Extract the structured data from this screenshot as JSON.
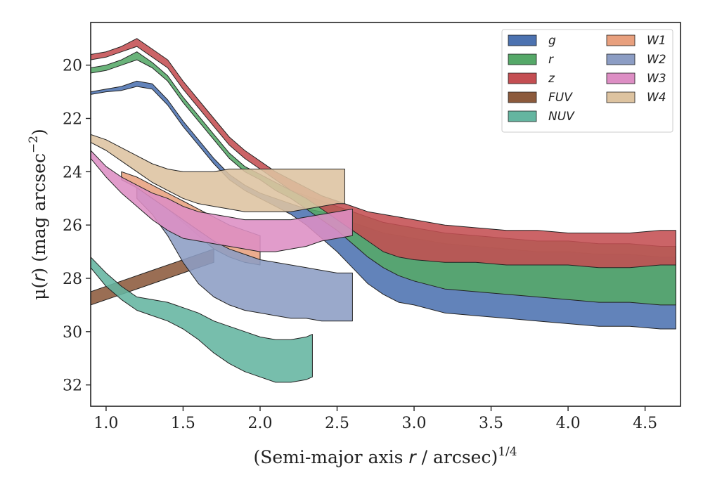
{
  "chart_data": {
    "type": "area",
    "xlabel": "(Semi-major axis r / arcsec)^{1/4}",
    "xlabel_parts": {
      "pre": "(Semi-major axis ",
      "var": "r",
      "post": " / arcsec)",
      "sup": "1/4"
    },
    "ylabel": "μ(r) (mag arcsec^{-2})",
    "ylabel_parts": {
      "mu": "μ(",
      "var": "r",
      "post": ") (mag arcsec",
      "sup": "−2",
      "close": ")"
    },
    "xlim": [
      0.9,
      4.73
    ],
    "ylim": [
      32.8,
      18.4
    ],
    "y_inverted": true,
    "xticks": [
      1.0,
      1.5,
      2.0,
      2.5,
      3.0,
      3.5,
      4.0,
      4.5
    ],
    "xtick_labels": [
      "1.0",
      "1.5",
      "2.0",
      "2.5",
      "3.0",
      "3.5",
      "4.0",
      "4.5"
    ],
    "yticks": [
      20,
      22,
      24,
      26,
      28,
      30,
      32
    ],
    "ytick_labels": [
      "20",
      "22",
      "24",
      "26",
      "28",
      "30",
      "32"
    ],
    "legend_position": "top-right",
    "legend_columns": 2,
    "series": [
      {
        "name": "g",
        "color": "#4c72b0",
        "x": [
          0.9,
          1.0,
          1.1,
          1.2,
          1.3,
          1.4,
          1.5,
          1.6,
          1.7,
          1.8,
          1.9,
          2.0,
          2.1,
          2.2,
          2.3,
          2.4,
          2.5,
          2.6,
          2.7,
          2.8,
          2.9,
          3.0,
          3.2,
          3.4,
          3.6,
          3.8,
          4.0,
          4.2,
          4.4,
          4.6,
          4.7
        ],
        "lo": [
          21.0,
          20.9,
          20.8,
          20.6,
          20.7,
          21.3,
          22.1,
          22.8,
          23.5,
          24.1,
          24.5,
          24.8,
          25.0,
          25.2,
          25.4,
          25.5,
          25.7,
          25.9,
          26.1,
          26.3,
          26.4,
          26.5,
          26.7,
          26.8,
          26.9,
          27.0,
          27.0,
          27.1,
          27.1,
          27.2,
          27.2
        ],
        "hi": [
          21.1,
          21.0,
          20.95,
          20.8,
          20.9,
          21.5,
          22.3,
          23.0,
          23.7,
          24.3,
          24.7,
          25.0,
          25.3,
          25.6,
          26.0,
          26.5,
          27.0,
          27.6,
          28.2,
          28.6,
          28.9,
          29.0,
          29.3,
          29.4,
          29.5,
          29.6,
          29.7,
          29.8,
          29.8,
          29.9,
          29.9
        ]
      },
      {
        "name": "r",
        "color": "#55a868",
        "x": [
          0.9,
          1.0,
          1.1,
          1.2,
          1.3,
          1.4,
          1.5,
          1.6,
          1.7,
          1.8,
          1.9,
          2.0,
          2.1,
          2.2,
          2.3,
          2.4,
          2.5,
          2.6,
          2.7,
          2.8,
          2.9,
          3.0,
          3.2,
          3.4,
          3.6,
          3.8,
          4.0,
          4.2,
          4.4,
          4.6,
          4.7
        ],
        "lo": [
          20.1,
          20.0,
          19.8,
          19.5,
          19.9,
          20.4,
          21.2,
          21.9,
          22.6,
          23.3,
          23.8,
          24.1,
          24.4,
          24.7,
          24.9,
          25.1,
          25.3,
          25.5,
          25.7,
          25.9,
          26.0,
          26.1,
          26.3,
          26.4,
          26.5,
          26.6,
          26.6,
          26.7,
          26.7,
          26.8,
          26.8
        ],
        "hi": [
          20.3,
          20.2,
          20.0,
          19.8,
          20.1,
          20.6,
          21.4,
          22.1,
          22.8,
          23.5,
          24.0,
          24.3,
          24.7,
          25.0,
          25.4,
          25.8,
          26.2,
          26.7,
          27.2,
          27.6,
          27.9,
          28.1,
          28.4,
          28.5,
          28.6,
          28.7,
          28.8,
          28.9,
          28.9,
          29.0,
          29.0
        ]
      },
      {
        "name": "z",
        "color": "#c44e52",
        "x": [
          0.9,
          1.0,
          1.1,
          1.2,
          1.3,
          1.4,
          1.5,
          1.6,
          1.7,
          1.8,
          1.9,
          2.0,
          2.1,
          2.2,
          2.3,
          2.4,
          2.5,
          2.6,
          2.7,
          2.8,
          2.9,
          3.0,
          3.2,
          3.4,
          3.6,
          3.8,
          4.0,
          4.2,
          4.4,
          4.6,
          4.7
        ],
        "lo": [
          19.6,
          19.5,
          19.3,
          19.0,
          19.4,
          19.8,
          20.6,
          21.3,
          22.0,
          22.7,
          23.2,
          23.6,
          24.0,
          24.3,
          24.6,
          24.9,
          25.1,
          25.3,
          25.5,
          25.6,
          25.7,
          25.8,
          26.0,
          26.1,
          26.2,
          26.2,
          26.3,
          26.3,
          26.3,
          26.2,
          26.2
        ],
        "hi": [
          19.8,
          19.7,
          19.5,
          19.3,
          19.7,
          20.1,
          20.9,
          21.6,
          22.3,
          23.0,
          23.5,
          23.9,
          24.3,
          24.7,
          25.0,
          25.4,
          25.8,
          26.2,
          26.6,
          27.0,
          27.2,
          27.3,
          27.4,
          27.4,
          27.5,
          27.5,
          27.5,
          27.6,
          27.6,
          27.5,
          27.5
        ]
      },
      {
        "name": "FUV",
        "color": "#8c5a3c",
        "x": [
          0.9,
          1.1,
          1.3,
          1.5,
          1.6,
          1.7
        ],
        "lo": [
          28.5,
          28.1,
          27.7,
          27.3,
          27.1,
          26.9
        ],
        "hi": [
          29.0,
          28.6,
          28.2,
          27.8,
          27.6,
          27.4
        ]
      },
      {
        "name": "NUV",
        "color": "#64b5a0",
        "x": [
          0.9,
          1.0,
          1.1,
          1.2,
          1.3,
          1.4,
          1.5,
          1.6,
          1.7,
          1.8,
          1.9,
          2.0,
          2.1,
          2.2,
          2.3,
          2.34
        ],
        "lo": [
          27.2,
          27.8,
          28.3,
          28.7,
          28.8,
          28.9,
          29.1,
          29.3,
          29.6,
          29.8,
          30.0,
          30.2,
          30.3,
          30.3,
          30.2,
          30.1
        ],
        "hi": [
          27.6,
          28.3,
          28.8,
          29.2,
          29.4,
          29.6,
          29.9,
          30.3,
          30.8,
          31.2,
          31.5,
          31.7,
          31.9,
          31.9,
          31.8,
          31.7
        ]
      },
      {
        "name": "W1",
        "color": "#e8a07e",
        "x": [
          1.1,
          1.2,
          1.3,
          1.4,
          1.5,
          1.6,
          1.7,
          1.8,
          1.9,
          2.0
        ],
        "lo": [
          24.0,
          24.2,
          24.5,
          24.8,
          25.1,
          25.4,
          25.7,
          26.0,
          26.2,
          26.4
        ],
        "hi": [
          24.3,
          24.6,
          25.0,
          25.4,
          25.9,
          26.4,
          26.9,
          27.2,
          27.4,
          27.5
        ]
      },
      {
        "name": "W2",
        "color": "#8c9dc4",
        "x": [
          1.2,
          1.3,
          1.4,
          1.5,
          1.6,
          1.7,
          1.8,
          1.9,
          2.0,
          2.1,
          2.2,
          2.3,
          2.4,
          2.5,
          2.6
        ],
        "lo": [
          24.6,
          25.0,
          25.4,
          25.8,
          26.2,
          26.6,
          26.9,
          27.1,
          27.3,
          27.4,
          27.5,
          27.6,
          27.7,
          27.8,
          27.8
        ],
        "hi": [
          25.0,
          25.6,
          26.4,
          27.4,
          28.2,
          28.7,
          29.0,
          29.2,
          29.3,
          29.4,
          29.5,
          29.5,
          29.6,
          29.6,
          29.6
        ]
      },
      {
        "name": "W3",
        "color": "#dd8ec4",
        "x": [
          0.9,
          1.0,
          1.1,
          1.2,
          1.3,
          1.4,
          1.5,
          1.6,
          1.7,
          1.8,
          1.9,
          2.0,
          2.1,
          2.2,
          2.3,
          2.4,
          2.5,
          2.6
        ],
        "lo": [
          23.2,
          23.8,
          24.2,
          24.5,
          24.8,
          25.0,
          25.3,
          25.5,
          25.6,
          25.7,
          25.8,
          25.8,
          25.8,
          25.8,
          25.7,
          25.6,
          25.5,
          25.4
        ],
        "hi": [
          23.5,
          24.2,
          24.8,
          25.3,
          25.8,
          26.2,
          26.5,
          26.6,
          26.7,
          26.8,
          26.9,
          27.0,
          27.0,
          26.9,
          26.8,
          26.6,
          26.5,
          26.4
        ]
      },
      {
        "name": "W4",
        "color": "#ddc3a0",
        "x": [
          0.9,
          1.0,
          1.1,
          1.2,
          1.3,
          1.4,
          1.5,
          1.6,
          1.7,
          1.8,
          1.9,
          2.0,
          2.1,
          2.2,
          2.3,
          2.4,
          2.5,
          2.55
        ],
        "lo": [
          22.6,
          22.8,
          23.1,
          23.4,
          23.7,
          23.9,
          24.0,
          24.0,
          24.0,
          23.9,
          23.9,
          23.9,
          23.9,
          23.9,
          23.9,
          23.9,
          23.9,
          23.9
        ],
        "hi": [
          22.9,
          23.2,
          23.6,
          24.0,
          24.4,
          24.7,
          25.0,
          25.2,
          25.3,
          25.4,
          25.5,
          25.5,
          25.5,
          25.5,
          25.4,
          25.3,
          25.2,
          25.2
        ]
      }
    ]
  }
}
